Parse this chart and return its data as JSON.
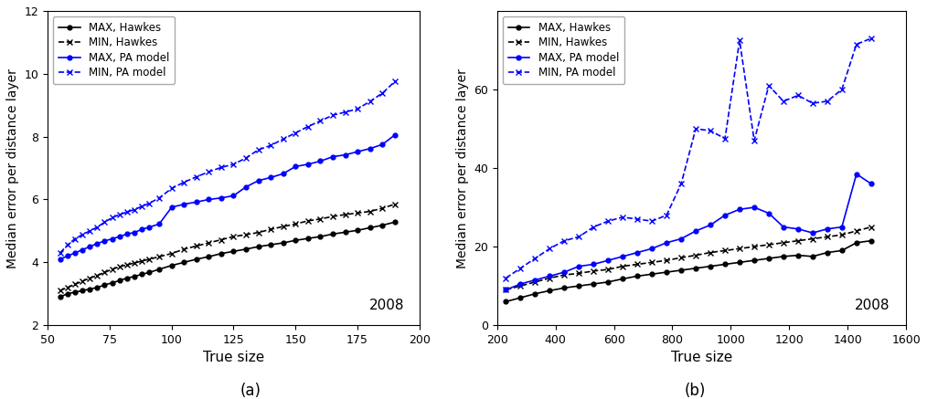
{
  "subplot_a": {
    "title_text": "2008",
    "xlabel": "True size",
    "ylabel": "Median error per distance layer",
    "xlim": [
      50,
      200
    ],
    "ylim": [
      2,
      12
    ],
    "xticks": [
      50,
      75,
      100,
      125,
      150,
      175,
      200
    ],
    "yticks": [
      2,
      4,
      6,
      8,
      10,
      12
    ],
    "series": {
      "MAX_Hawkes": {
        "x": [
          55,
          58,
          61,
          64,
          67,
          70,
          73,
          76,
          79,
          82,
          85,
          88,
          91,
          95,
          100,
          105,
          110,
          115,
          120,
          125,
          130,
          135,
          140,
          145,
          150,
          155,
          160,
          165,
          170,
          175,
          180,
          185,
          190
        ],
        "y": [
          2.9,
          3.0,
          3.05,
          3.1,
          3.15,
          3.2,
          3.28,
          3.35,
          3.42,
          3.5,
          3.55,
          3.62,
          3.68,
          3.78,
          3.9,
          4.0,
          4.1,
          4.18,
          4.28,
          4.35,
          4.42,
          4.5,
          4.56,
          4.62,
          4.7,
          4.76,
          4.82,
          4.9,
          4.96,
          5.02,
          5.1,
          5.18,
          5.28
        ],
        "color": "black",
        "linestyle": "-",
        "marker": "o",
        "label": "MAX, Hawkes"
      },
      "MIN_Hawkes": {
        "x": [
          55,
          58,
          61,
          64,
          67,
          70,
          73,
          76,
          79,
          82,
          85,
          88,
          91,
          95,
          100,
          105,
          110,
          115,
          120,
          125,
          130,
          135,
          140,
          145,
          150,
          155,
          160,
          165,
          170,
          175,
          180,
          185,
          190
        ],
        "y": [
          3.1,
          3.2,
          3.3,
          3.4,
          3.5,
          3.58,
          3.68,
          3.78,
          3.86,
          3.92,
          3.98,
          4.04,
          4.1,
          4.18,
          4.28,
          4.42,
          4.52,
          4.62,
          4.72,
          4.82,
          4.88,
          4.95,
          5.05,
          5.14,
          5.22,
          5.32,
          5.38,
          5.46,
          5.52,
          5.57,
          5.62,
          5.72,
          5.85
        ],
        "color": "black",
        "linestyle": "--",
        "marker": "x",
        "label": "MIN, Hawkes"
      },
      "MAX_PA": {
        "x": [
          55,
          58,
          61,
          64,
          67,
          70,
          73,
          76,
          79,
          82,
          85,
          88,
          91,
          95,
          100,
          105,
          110,
          115,
          120,
          125,
          130,
          135,
          140,
          145,
          150,
          155,
          160,
          165,
          170,
          175,
          180,
          185,
          190
        ],
        "y": [
          4.1,
          4.2,
          4.3,
          4.4,
          4.5,
          4.6,
          4.68,
          4.75,
          4.82,
          4.9,
          4.95,
          5.05,
          5.12,
          5.22,
          5.75,
          5.85,
          5.92,
          6.0,
          6.05,
          6.12,
          6.4,
          6.6,
          6.7,
          6.82,
          7.05,
          7.12,
          7.22,
          7.36,
          7.42,
          7.52,
          7.62,
          7.75,
          8.05
        ],
        "color": "blue",
        "linestyle": "-",
        "marker": "o",
        "label": "MAX, PA model"
      },
      "MIN_PA": {
        "x": [
          55,
          58,
          61,
          64,
          67,
          70,
          73,
          76,
          79,
          82,
          85,
          88,
          91,
          95,
          100,
          105,
          110,
          115,
          120,
          125,
          130,
          135,
          140,
          145,
          150,
          155,
          160,
          165,
          170,
          175,
          180,
          185,
          190
        ],
        "y": [
          4.3,
          4.55,
          4.75,
          4.88,
          5.0,
          5.12,
          5.28,
          5.42,
          5.52,
          5.6,
          5.68,
          5.78,
          5.88,
          6.05,
          6.35,
          6.55,
          6.72,
          6.88,
          7.02,
          7.12,
          7.32,
          7.58,
          7.72,
          7.92,
          8.12,
          8.32,
          8.5,
          8.68,
          8.78,
          8.88,
          9.12,
          9.38,
          9.75
        ],
        "color": "blue",
        "linestyle": "--",
        "marker": "x",
        "label": "MIN, PA model"
      }
    }
  },
  "subplot_b": {
    "title_text": "2008",
    "xlabel": "True size",
    "ylabel": "Median error per distance layer",
    "xlim": [
      200,
      1600
    ],
    "ylim": [
      0,
      80
    ],
    "xticks": [
      200,
      400,
      600,
      800,
      1000,
      1200,
      1400,
      1600
    ],
    "yticks": [
      0,
      20,
      40,
      60
    ],
    "series": {
      "MAX_Hawkes": {
        "x": [
          230,
          280,
          330,
          380,
          430,
          480,
          530,
          580,
          630,
          680,
          730,
          780,
          830,
          880,
          930,
          980,
          1030,
          1080,
          1130,
          1180,
          1230,
          1280,
          1330,
          1380,
          1430,
          1480
        ],
        "y": [
          6.0,
          7.0,
          8.0,
          8.8,
          9.5,
          10.0,
          10.5,
          11.0,
          11.8,
          12.5,
          13.0,
          13.5,
          14.0,
          14.5,
          15.0,
          15.5,
          16.0,
          16.5,
          17.0,
          17.5,
          17.8,
          17.5,
          18.5,
          19.0,
          21.0,
          21.5
        ],
        "color": "black",
        "linestyle": "-",
        "marker": "o",
        "label": "MAX, Hawkes"
      },
      "MIN_Hawkes": {
        "x": [
          230,
          280,
          330,
          380,
          430,
          480,
          530,
          580,
          630,
          680,
          730,
          780,
          830,
          880,
          930,
          980,
          1030,
          1080,
          1130,
          1180,
          1230,
          1280,
          1330,
          1380,
          1430,
          1480
        ],
        "y": [
          9.0,
          10.0,
          11.0,
          12.0,
          12.8,
          13.2,
          13.8,
          14.2,
          15.0,
          15.5,
          16.0,
          16.5,
          17.2,
          17.8,
          18.5,
          19.0,
          19.5,
          20.0,
          20.5,
          21.0,
          21.5,
          22.0,
          22.5,
          23.0,
          24.0,
          25.0
        ],
        "color": "black",
        "linestyle": "--",
        "marker": "x",
        "label": "MIN, Hawkes"
      },
      "MAX_PA": {
        "x": [
          230,
          280,
          330,
          380,
          430,
          480,
          530,
          580,
          630,
          680,
          730,
          780,
          830,
          880,
          930,
          980,
          1030,
          1080,
          1130,
          1180,
          1230,
          1280,
          1330,
          1380,
          1430,
          1480
        ],
        "y": [
          9.0,
          10.5,
          11.5,
          12.5,
          13.5,
          15.0,
          15.5,
          16.5,
          17.5,
          18.5,
          19.5,
          21.0,
          22.0,
          24.0,
          25.5,
          28.0,
          29.5,
          30.0,
          28.5,
          25.0,
          24.5,
          23.5,
          24.5,
          25.0,
          38.5,
          36.0
        ],
        "color": "blue",
        "linestyle": "-",
        "marker": "o",
        "label": "MAX, PA model"
      },
      "MIN_PA": {
        "x": [
          230,
          280,
          330,
          380,
          430,
          480,
          530,
          580,
          630,
          680,
          730,
          780,
          830,
          880,
          930,
          980,
          1030,
          1080,
          1130,
          1180,
          1230,
          1280,
          1330,
          1380,
          1430,
          1480
        ],
        "y": [
          12.0,
          14.5,
          17.0,
          19.5,
          21.5,
          22.5,
          25.0,
          26.5,
          27.5,
          27.0,
          26.5,
          28.0,
          36.0,
          50.0,
          49.5,
          47.5,
          72.5,
          47.0,
          61.0,
          57.0,
          58.5,
          56.5,
          57.0,
          60.0,
          71.5,
          73.0
        ],
        "color": "blue",
        "linestyle": "--",
        "marker": "x",
        "label": "MIN, PA model"
      }
    }
  },
  "fig_width": 10.14,
  "fig_height": 4.37,
  "label_a": "(a)",
  "label_b": "(b)"
}
